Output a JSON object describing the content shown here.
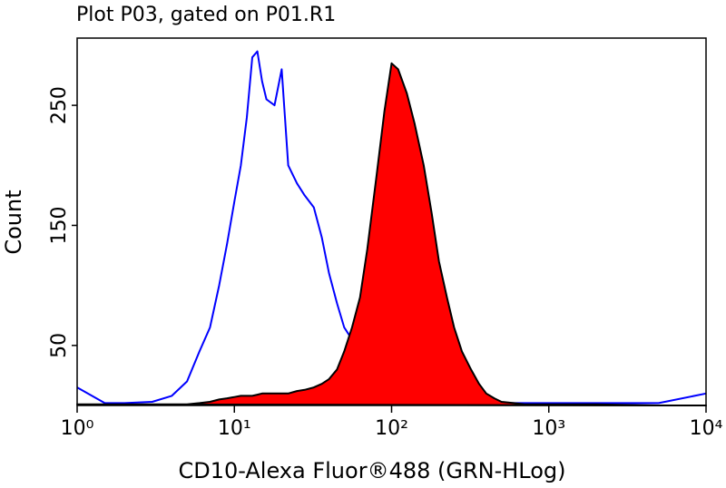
{
  "chart_data": {
    "type": "histogram-overlay",
    "title": "Plot P03, gated on P01.R1",
    "x_label": "CD10-Alexa Fluor®488 (GRN-HLog)",
    "y_label": "Count",
    "xscale": "log",
    "xlim": [
      1,
      10000
    ],
    "ylim": [
      0,
      306
    ],
    "xticks": [
      {
        "value": 1,
        "label": "10⁰"
      },
      {
        "value": 10,
        "label": "10¹"
      },
      {
        "value": 100,
        "label": "10²"
      },
      {
        "value": 1000,
        "label": "10³"
      },
      {
        "value": 10000,
        "label": "10⁴"
      }
    ],
    "yticks": [
      50,
      150,
      250
    ],
    "x": [
      1,
      1.5,
      2,
      3,
      4,
      5,
      6,
      7,
      8,
      9,
      10,
      11,
      12,
      13,
      14,
      15,
      16,
      18,
      20,
      22,
      25,
      28,
      32,
      36,
      40,
      45,
      50,
      56,
      63,
      70,
      80,
      90,
      100,
      110,
      125,
      140,
      160,
      180,
      200,
      225,
      250,
      280,
      320,
      360,
      400,
      450,
      500,
      600,
      700,
      800,
      1000,
      2000,
      5000,
      10000
    ],
    "series": [
      {
        "color": "#0000ff",
        "filled": false,
        "values": [
          15,
          2,
          2,
          3,
          8,
          20,
          45,
          65,
          100,
          135,
          170,
          200,
          240,
          290,
          295,
          270,
          255,
          250,
          280,
          200,
          185,
          175,
          165,
          140,
          110,
          85,
          65,
          55,
          50,
          45,
          30,
          20,
          12,
          8,
          5,
          3,
          2,
          2,
          2,
          2,
          2,
          2,
          2,
          2,
          2,
          2,
          2,
          2,
          2,
          2,
          2,
          2,
          2,
          10
        ]
      },
      {
        "color": "#ff0000",
        "edgecolor": "#000000",
        "filled": true,
        "values": [
          1,
          1,
          1,
          1,
          1,
          1,
          2,
          3,
          5,
          6,
          7,
          8,
          8,
          8,
          9,
          10,
          10,
          10,
          10,
          10,
          12,
          13,
          15,
          18,
          22,
          30,
          45,
          65,
          90,
          130,
          190,
          245,
          285,
          280,
          260,
          235,
          200,
          160,
          120,
          90,
          65,
          45,
          30,
          18,
          10,
          6,
          3,
          2,
          1,
          1,
          1,
          1,
          0,
          0
        ]
      }
    ]
  }
}
